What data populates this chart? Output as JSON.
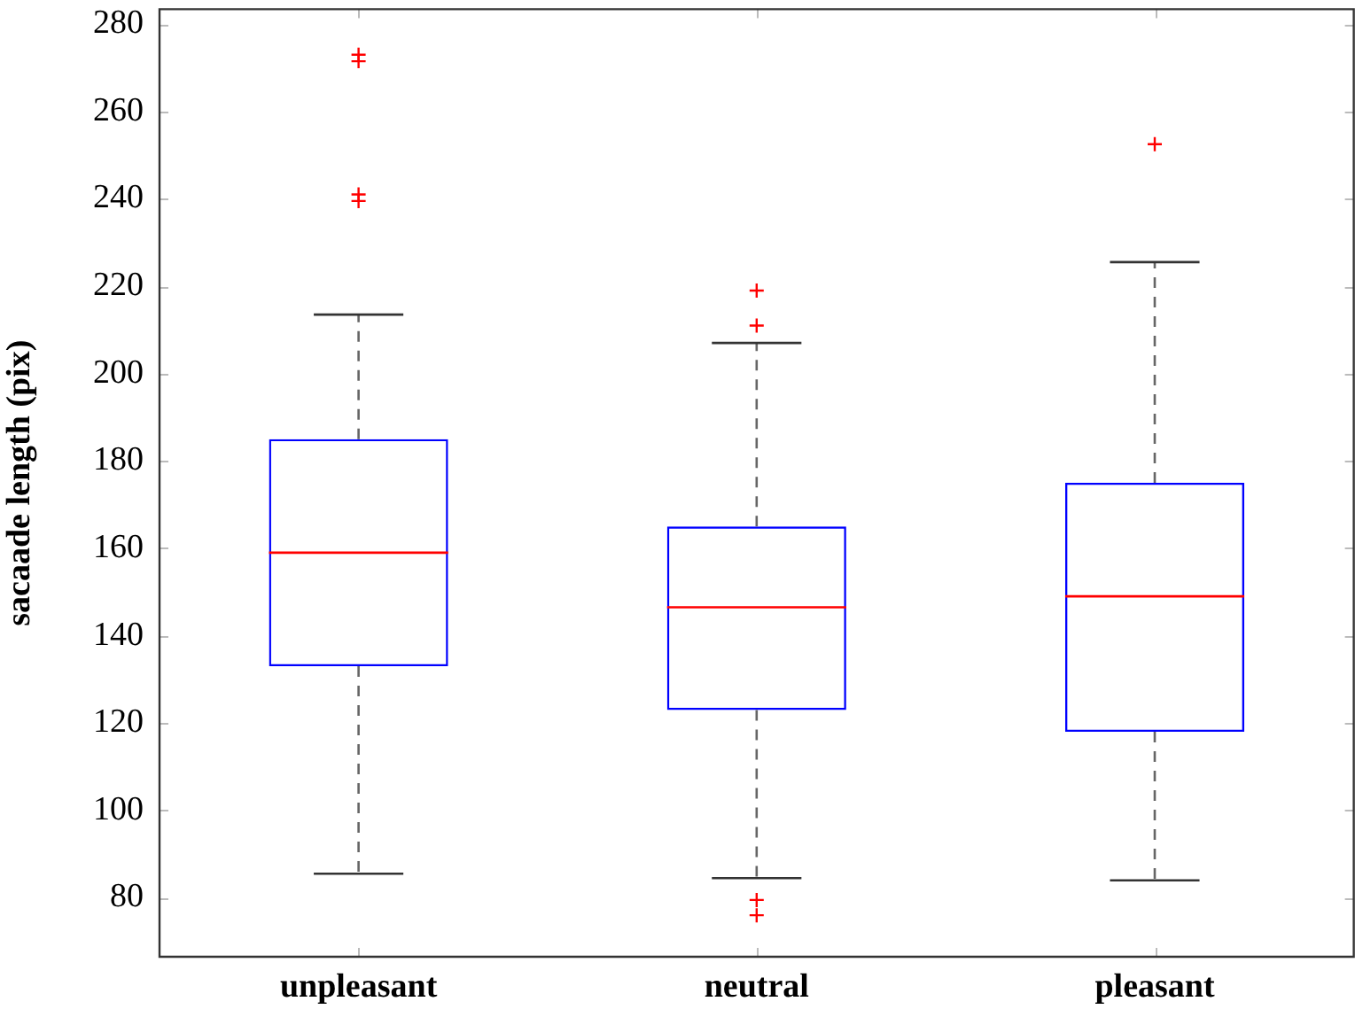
{
  "chart_data": {
    "type": "box",
    "ylabel": "sacaade length (pix)",
    "categories": [
      "unpleasant",
      "neutral",
      "pleasant"
    ],
    "boxes": [
      {
        "low": 85.5,
        "q1": 133,
        "median": 159,
        "q3": 185,
        "high": 213.5,
        "outliers": [
          273,
          271.5,
          241,
          239.5
        ]
      },
      {
        "low": 84.5,
        "q1": 123,
        "median": 146.5,
        "q3": 165,
        "high": 207,
        "outliers": [
          219,
          211,
          79.5,
          76
        ]
      },
      {
        "low": 84,
        "q1": 118,
        "median": 149,
        "q3": 175,
        "high": 225.5,
        "outliers": [
          252.5
        ]
      }
    ],
    "color": "#0000ff",
    "ylim": [
      66.5,
      283.4
    ],
    "yticks": [
      80,
      100,
      120,
      140,
      160,
      180,
      200,
      220,
      240,
      260,
      280
    ]
  }
}
